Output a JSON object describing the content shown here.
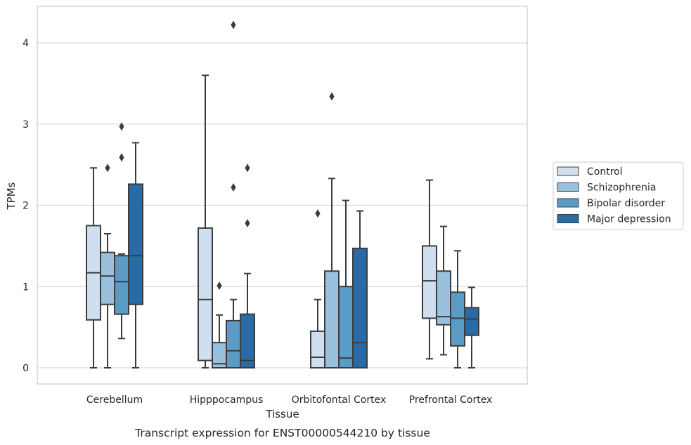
{
  "chart_data": {
    "type": "box",
    "title": "",
    "caption": "Transcript expression for ENST00000544210 by tissue",
    "xlabel": "Tissue",
    "ylabel": "TPMs",
    "ylim": [
      -0.2,
      4.45
    ],
    "yticks": [
      0,
      1,
      2,
      3,
      4
    ],
    "grid": "horizontal",
    "legend_position": "right",
    "categories": [
      "Cerebellum",
      "Hipppocampus",
      "Orbitofontal Cortex",
      "Prefrontal Cortex"
    ],
    "series": [
      {
        "name": "Control",
        "color": "#cfdff0",
        "boxes": [
          {
            "whislo": 0.0,
            "q1": 0.59,
            "med": 1.17,
            "q3": 1.75,
            "whishi": 2.46,
            "fliers": []
          },
          {
            "whislo": 0.0,
            "q1": 0.09,
            "med": 0.84,
            "q3": 1.72,
            "whishi": 3.6,
            "fliers": []
          },
          {
            "whislo": 0.0,
            "q1": 0.0,
            "med": 0.13,
            "q3": 0.45,
            "whishi": 0.84,
            "fliers": [
              1.9
            ]
          },
          {
            "whislo": 0.11,
            "q1": 0.61,
            "med": 1.07,
            "q3": 1.5,
            "whishi": 2.31,
            "fliers": []
          }
        ]
      },
      {
        "name": "Schizophrenia",
        "color": "#99c1de",
        "boxes": [
          {
            "whislo": 0.0,
            "q1": 0.78,
            "med": 1.13,
            "q3": 1.42,
            "whishi": 1.65,
            "fliers": [
              2.46
            ]
          },
          {
            "whislo": 0.0,
            "q1": 0.0,
            "med": 0.05,
            "q3": 0.31,
            "whishi": 0.65,
            "fliers": [
              1.01
            ]
          },
          {
            "whislo": 0.0,
            "q1": 0.0,
            "med": 0.0,
            "q3": 1.19,
            "whishi": 2.33,
            "fliers": [
              3.34
            ]
          },
          {
            "whislo": 0.16,
            "q1": 0.53,
            "med": 0.63,
            "q3": 1.19,
            "whishi": 1.74,
            "fliers": []
          }
        ]
      },
      {
        "name": "Bipolar disorder",
        "color": "#5b9cc7",
        "boxes": [
          {
            "whislo": 0.36,
            "q1": 0.66,
            "med": 1.06,
            "q3": 1.38,
            "whishi": 1.4,
            "fliers": [
              2.59,
              2.97
            ]
          },
          {
            "whislo": 0.0,
            "q1": 0.0,
            "med": 0.21,
            "q3": 0.58,
            "whishi": 0.84,
            "fliers": [
              2.22,
              4.22
            ]
          },
          {
            "whislo": 0.0,
            "q1": 0.0,
            "med": 0.12,
            "q3": 1.0,
            "whishi": 2.06,
            "fliers": []
          },
          {
            "whislo": 0.0,
            "q1": 0.27,
            "med": 0.61,
            "q3": 0.93,
            "whishi": 1.44,
            "fliers": []
          }
        ]
      },
      {
        "name": "Major depression",
        "color": "#2a6aa5",
        "boxes": [
          {
            "whislo": 0.0,
            "q1": 0.78,
            "med": 1.38,
            "q3": 2.26,
            "whishi": 2.77,
            "fliers": []
          },
          {
            "whislo": 0.0,
            "q1": 0.0,
            "med": 0.09,
            "q3": 0.66,
            "whishi": 1.16,
            "fliers": [
              1.78,
              2.46
            ]
          },
          {
            "whislo": 0.0,
            "q1": 0.0,
            "med": 0.31,
            "q3": 1.47,
            "whishi": 1.93,
            "fliers": []
          },
          {
            "whislo": 0.0,
            "q1": 0.4,
            "med": 0.6,
            "q3": 0.74,
            "whishi": 0.99,
            "fliers": []
          }
        ]
      }
    ]
  }
}
